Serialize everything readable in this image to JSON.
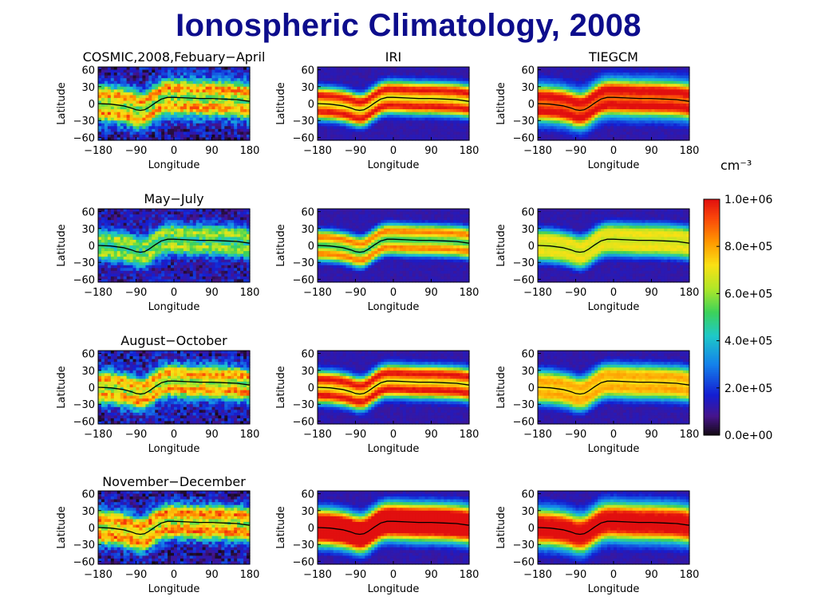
{
  "title": "Ionospheric Climatology, 2008",
  "chart_data": {
    "type": "heatmap",
    "title": "Ionospheric Climatology, 2008",
    "columns": [
      "COSMIC",
      "IRI",
      "TIEGCM"
    ],
    "row_titles": [
      "COSMIC,2008,Febuary−April",
      "May−July",
      "August−October",
      "November−December"
    ],
    "column_titles": [
      "IRI",
      "TIEGCM"
    ],
    "xlabel": "Longitude",
    "ylabel": "Latitude",
    "xticks": [
      "−180",
      "−90",
      "0",
      "90",
      "180"
    ],
    "yticks": [
      "60",
      "30",
      "0",
      "−30",
      "−60"
    ],
    "xlim": [
      -180,
      180
    ],
    "ylim": [
      -65,
      65
    ],
    "magnetic_equator": {
      "lon": [
        -180,
        -150,
        -120,
        -100,
        -90,
        -80,
        -70,
        -60,
        -45,
        -30,
        -15,
        0,
        30,
        60,
        90,
        120,
        150,
        180
      ],
      "lat": [
        0,
        -1,
        -4,
        -8,
        -11,
        -12,
        -11,
        -7,
        1,
        8,
        11,
        11,
        10,
        9,
        9,
        8,
        7,
        4
      ]
    },
    "colorbar": {
      "unit": "cm⁻³",
      "tick_labels": [
        "1.0e+06",
        "8.0e+05",
        "6.0e+05",
        "4.0e+05",
        "2.0e+05",
        "0.0e+00"
      ],
      "range": [
        0,
        1000000
      ]
    },
    "panels": [
      {
        "season": "Febuary−April",
        "model": "COSMIC",
        "level": 0.72,
        "crest_lat": 18,
        "crest_width": 11,
        "floor": 0.52,
        "noise": 0.12
      },
      {
        "season": "Febuary−April",
        "model": "IRI",
        "level": 0.95,
        "crest_lat": 15,
        "crest_width": 13,
        "floor": 0.28,
        "noise": 0.02
      },
      {
        "season": "Febuary−April",
        "model": "TIEGCM",
        "level": 0.9,
        "crest_lat": 15,
        "crest_width": 14,
        "floor": 0.52,
        "noise": 0.02
      },
      {
        "season": "May−July",
        "model": "COSMIC",
        "level": 0.55,
        "crest_lat": 14,
        "crest_width": 12,
        "floor": 0.28,
        "noise": 0.1
      },
      {
        "season": "May−July",
        "model": "IRI",
        "level": 0.82,
        "crest_lat": 15,
        "crest_width": 12,
        "floor": 0.22,
        "noise": 0.02
      },
      {
        "season": "May−July",
        "model": "TIEGCM",
        "level": 0.66,
        "crest_lat": 14,
        "crest_width": 15,
        "floor": 0.22,
        "noise": 0.02
      },
      {
        "season": "August−October",
        "model": "COSMIC",
        "level": 0.72,
        "crest_lat": 15,
        "crest_width": 12,
        "floor": 0.4,
        "noise": 0.12
      },
      {
        "season": "August−October",
        "model": "IRI",
        "level": 0.95,
        "crest_lat": 15,
        "crest_width": 13,
        "floor": 0.3,
        "noise": 0.02
      },
      {
        "season": "August−October",
        "model": "TIEGCM",
        "level": 0.72,
        "crest_lat": 14,
        "crest_width": 15,
        "floor": 0.3,
        "noise": 0.02
      },
      {
        "season": "November−December",
        "model": "COSMIC",
        "level": 0.78,
        "crest_lat": 16,
        "crest_width": 13,
        "floor": 0.38,
        "noise": 0.12
      },
      {
        "season": "November−December",
        "model": "IRI",
        "level": 1.0,
        "crest_lat": 14,
        "crest_width": 18,
        "floor": 0.42,
        "noise": 0.02
      },
      {
        "season": "November−December",
        "model": "TIEGCM",
        "level": 0.85,
        "crest_lat": 14,
        "crest_width": 16,
        "floor": 0.55,
        "noise": 0.02
      }
    ]
  }
}
